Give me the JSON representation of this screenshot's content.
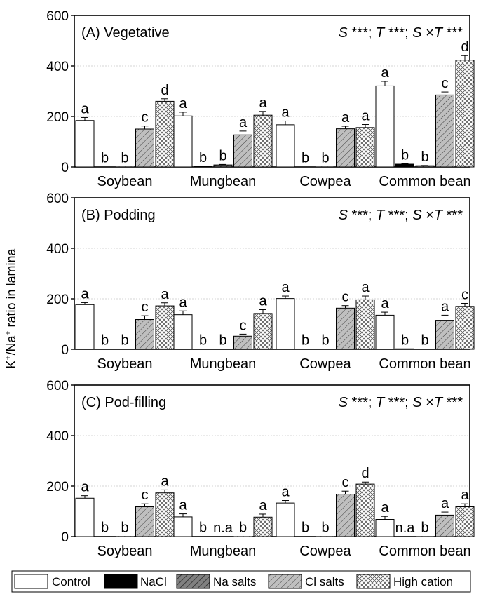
{
  "y_axis_label": "K+/Na+ ratio in lamina",
  "y_axis_label_parts": {
    "k": "K",
    "plus1": "+",
    "slash_na": "/Na",
    "plus2": "+",
    "rest": " ratio in lamina"
  },
  "legend": {
    "items": [
      {
        "label": "Control",
        "pattern": "control"
      },
      {
        "label": "NaCl",
        "pattern": "nacl"
      },
      {
        "label": "Na salts",
        "pattern": "nasalts"
      },
      {
        "label": "Cl salts",
        "pattern": "clsalts"
      },
      {
        "label": "High cation",
        "pattern": "highcation"
      }
    ]
  },
  "colors": {
    "axis": "#000000",
    "nacl_fill": "#000000",
    "nasalts_fill": "#808080",
    "clsalts_fill": "#bfbfbf",
    "control_fill": "#ffffff",
    "grid": "#c8c8c8"
  },
  "chart_data": [
    {
      "type": "bar",
      "title": "(A) Vegetative",
      "stats": {
        "s": "S",
        "s_sig": " ***; ",
        "t": "T",
        "t_sig": " ***; ",
        "sxt_s": "S",
        "sxt_x": " ×",
        "sxt_t": "T",
        "sxt_sig": " ***"
      },
      "categories": [
        "Soybean",
        "Mungbean",
        "Cowpea",
        "Common bean"
      ],
      "ylim": [
        0,
        600
      ],
      "yticks": [
        0,
        200,
        400,
        600
      ],
      "xlabel": "",
      "ylabel": "K+/Na+ ratio in lamina",
      "series": [
        {
          "name": "Control",
          "values": [
            184,
            202,
            167,
            321
          ],
          "errors": [
            12,
            15,
            15,
            18
          ],
          "letters": [
            "a",
            "a",
            "a",
            "a"
          ]
        },
        {
          "name": "NaCl",
          "values": [
            1,
            3,
            1,
            11
          ],
          "errors": [
            0,
            0,
            0,
            2
          ],
          "letters": [
            "b",
            "b",
            "b",
            "b"
          ]
        },
        {
          "name": "Na salts",
          "values": [
            1,
            8,
            1,
            5
          ],
          "errors": [
            0,
            2,
            0,
            1
          ],
          "letters": [
            "b",
            "b",
            "b",
            "b"
          ]
        },
        {
          "name": "Cl salts",
          "values": [
            150,
            127,
            151,
            285
          ],
          "errors": [
            12,
            15,
            10,
            12
          ],
          "letters": [
            "c",
            "a",
            "a",
            "c"
          ]
        },
        {
          "name": "High cation",
          "values": [
            260,
            205,
            156,
            423
          ],
          "errors": [
            10,
            15,
            12,
            18
          ],
          "letters": [
            "d",
            "a",
            "a",
            "d"
          ]
        }
      ]
    },
    {
      "type": "bar",
      "title": "(B) Podding",
      "stats": {
        "s": "S",
        "s_sig": " ***; ",
        "t": "T",
        "t_sig": " ***; ",
        "sxt_s": "S",
        "sxt_x": " ×",
        "sxt_t": "T",
        "sxt_sig": " ***"
      },
      "categories": [
        "Soybean",
        "Mungbean",
        "Cowpea",
        "Common bean"
      ],
      "ylim": [
        0,
        600
      ],
      "yticks": [
        0,
        200,
        400,
        600
      ],
      "xlabel": "",
      "ylabel": "K+/Na+ ratio in lamina",
      "series": [
        {
          "name": "Control",
          "values": [
            177,
            137,
            201,
            135
          ],
          "errors": [
            8,
            15,
            10,
            12
          ],
          "letters": [
            "a",
            "a",
            "a",
            "a"
          ]
        },
        {
          "name": "NaCl",
          "values": [
            1,
            1,
            1,
            2
          ],
          "errors": [
            0,
            0,
            0,
            0
          ],
          "letters": [
            "b",
            "b",
            "b",
            "b"
          ]
        },
        {
          "name": "Na salts",
          "values": [
            1,
            1,
            1,
            1
          ],
          "errors": [
            0,
            0,
            0,
            0
          ],
          "letters": [
            "b",
            "b",
            "b",
            "b"
          ]
        },
        {
          "name": "Cl salts",
          "values": [
            118,
            52,
            163,
            115
          ],
          "errors": [
            15,
            8,
            10,
            20
          ],
          "letters": [
            "c",
            "c",
            "c",
            "a"
          ]
        },
        {
          "name": "High cation",
          "values": [
            172,
            142,
            196,
            170
          ],
          "errors": [
            12,
            15,
            15,
            12
          ],
          "letters": [
            "a",
            "a",
            "a",
            "c"
          ]
        }
      ]
    },
    {
      "type": "bar",
      "title": "(C) Pod-filling",
      "stats": {
        "s": "S",
        "s_sig": " ***; ",
        "t": "T",
        "t_sig": " ***; ",
        "sxt_s": "S",
        "sxt_x": " ×",
        "sxt_t": "T",
        "sxt_sig": " ***"
      },
      "categories": [
        "Soybean",
        "Mungbean",
        "Cowpea",
        "Common bean"
      ],
      "ylim": [
        0,
        600
      ],
      "yticks": [
        0,
        200,
        400,
        600
      ],
      "xlabel": "",
      "ylabel": "K+/Na+ ratio in lamina",
      "series": [
        {
          "name": "Control",
          "values": [
            152,
            78,
            133,
            68
          ],
          "errors": [
            10,
            12,
            10,
            12
          ],
          "letters": [
            "a",
            "a",
            "a",
            "a"
          ]
        },
        {
          "name": "NaCl",
          "values": [
            1,
            1,
            1,
            0
          ],
          "errors": [
            0,
            0,
            0,
            0
          ],
          "letters": [
            "b",
            "b",
            "b",
            "n.a"
          ]
        },
        {
          "name": "Na salts",
          "values": [
            1,
            0,
            1,
            1
          ],
          "errors": [
            0,
            0,
            0,
            0
          ],
          "letters": [
            "b",
            "n.a",
            "b",
            "b"
          ]
        },
        {
          "name": "Cl salts",
          "values": [
            118,
            1,
            168,
            85
          ],
          "errors": [
            12,
            0,
            12,
            12
          ],
          "letters": [
            "c",
            "b",
            "c",
            "a"
          ]
        },
        {
          "name": "High cation",
          "values": [
            173,
            77,
            208,
            118
          ],
          "errors": [
            12,
            12,
            8,
            12
          ],
          "letters": [
            "a",
            "a",
            "d",
            "a"
          ]
        }
      ]
    }
  ]
}
